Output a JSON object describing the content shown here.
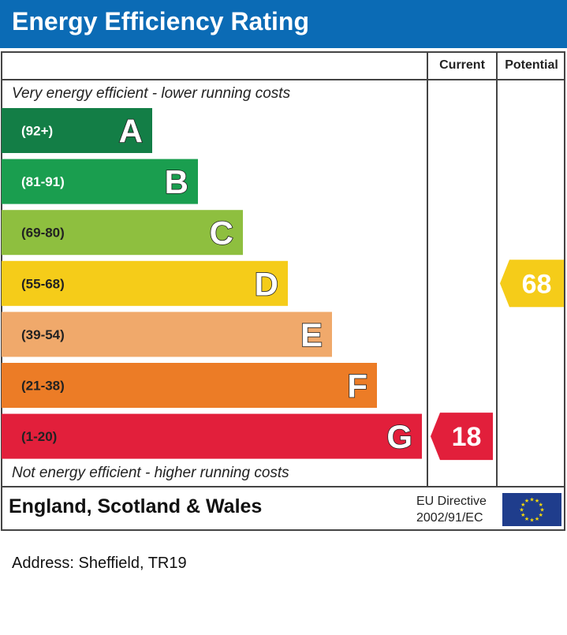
{
  "header": {
    "title": "Energy Efficiency Rating"
  },
  "columns": {
    "current": "Current",
    "potential": "Potential"
  },
  "notes": {
    "top": "Very energy efficient - lower running costs",
    "bottom": "Not energy efficient - higher running costs"
  },
  "footer": {
    "region": "England, Scotland & Wales",
    "directive_line1": "EU Directive",
    "directive_line2": "2002/91/EC",
    "flag_icon": "eu-flag-icon"
  },
  "address": "Address: Sheffield, TR19",
  "chart_data": {
    "type": "bar",
    "categories": [
      "A",
      "B",
      "C",
      "D",
      "E",
      "F",
      "G"
    ],
    "ranges": [
      "(92+)",
      "(81-91)",
      "(69-80)",
      "(55-68)",
      "(39-54)",
      "(21-38)",
      "(1-20)"
    ],
    "colors": [
      "#137e46",
      "#1a9e4f",
      "#8ebf3f",
      "#f5cc19",
      "#f0a96b",
      "#ec7c26",
      "#e21f3b"
    ],
    "range_text_colors": [
      "#ffffff",
      "#ffffff",
      "#222222",
      "#222222",
      "#222222",
      "#222222",
      "#222222"
    ],
    "current": {
      "value": 18,
      "band": "G",
      "color": "#e21f3b"
    },
    "potential": {
      "value": 68,
      "band": "D",
      "color": "#f5cc19"
    }
  }
}
